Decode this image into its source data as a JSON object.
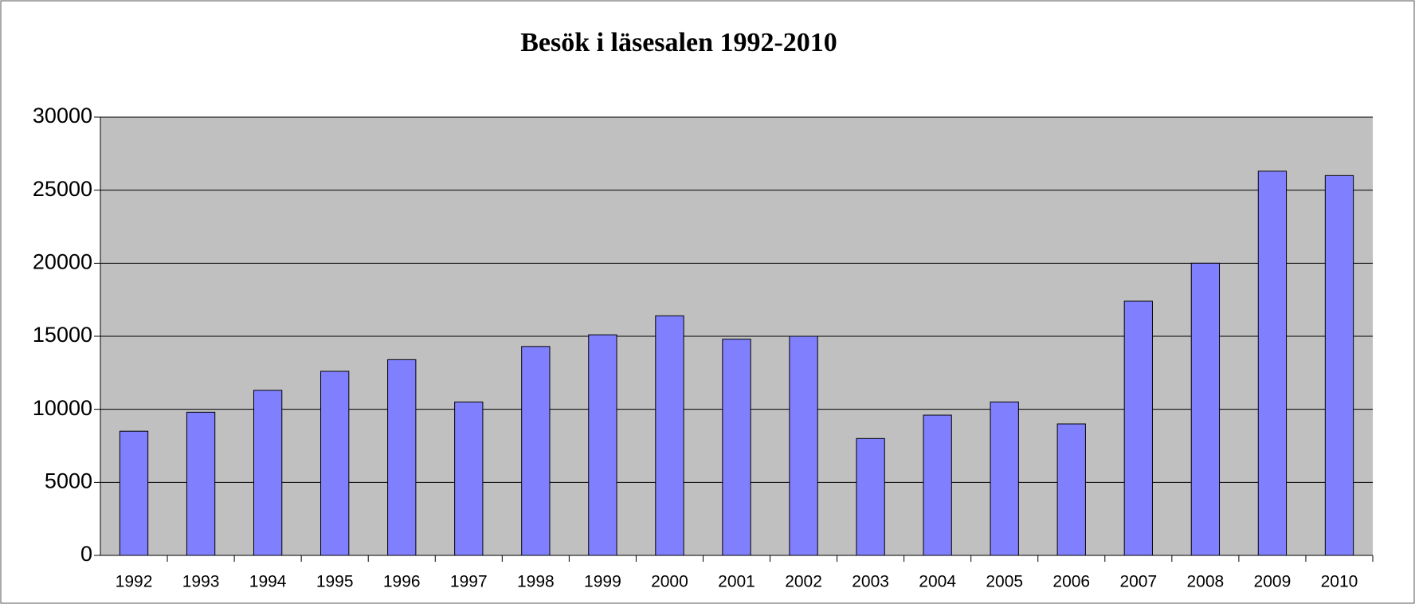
{
  "chart_data": {
    "type": "bar",
    "title": "Besök i läsesalen 1992-2010",
    "categories": [
      "1992",
      "1993",
      "1994",
      "1995",
      "1996",
      "1997",
      "1998",
      "1999",
      "2000",
      "2001",
      "2002",
      "2003",
      "2004",
      "2005",
      "2006",
      "2007",
      "2008",
      "2009",
      "2010"
    ],
    "values": [
      8500,
      9800,
      11300,
      12600,
      13400,
      10500,
      14300,
      15100,
      16400,
      14800,
      15000,
      8000,
      9600,
      10500,
      9000,
      17400,
      20000,
      26300,
      26000
    ],
    "color": "#8080ff",
    "ylim": [
      0,
      30000
    ],
    "yticks": [
      0,
      5000,
      10000,
      15000,
      20000,
      25000,
      30000
    ],
    "grid": true
  }
}
